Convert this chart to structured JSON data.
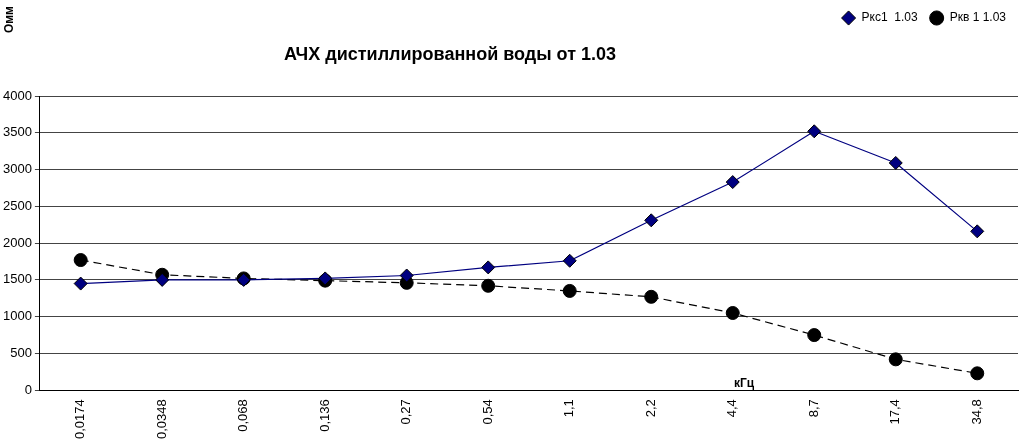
{
  "chart_data": {
    "type": "line",
    "title": "АЧХ дистиллированной воды от 1.03",
    "ylabel": "Омм",
    "xlabel": "кГц",
    "categories": [
      "0,0174",
      "0,0348",
      "0,068",
      "0,136",
      "0,27",
      "0,54",
      "1,1",
      "2,2",
      "4,4",
      "8,7",
      "17,4",
      "34,8"
    ],
    "series": [
      {
        "name": "Ркс1  1.03",
        "color": "#000080",
        "marker": "diamond",
        "line_style": "solid",
        "values": [
          1450,
          1500,
          1500,
          1520,
          1560,
          1670,
          1760,
          2310,
          2830,
          3520,
          3090,
          2160
        ]
      },
      {
        "name": "Ркв 1 1.03",
        "color": "#000000",
        "marker": "circle",
        "line_style": "dashed",
        "values": [
          1770,
          1570,
          1520,
          1490,
          1460,
          1420,
          1350,
          1270,
          1050,
          750,
          420,
          230
        ]
      }
    ],
    "ylim": [
      0,
      4000
    ],
    "yticks": [
      0,
      500,
      1000,
      1500,
      2000,
      2500,
      3000,
      3500,
      4000
    ],
    "grid": "y",
    "legend": "top right"
  }
}
